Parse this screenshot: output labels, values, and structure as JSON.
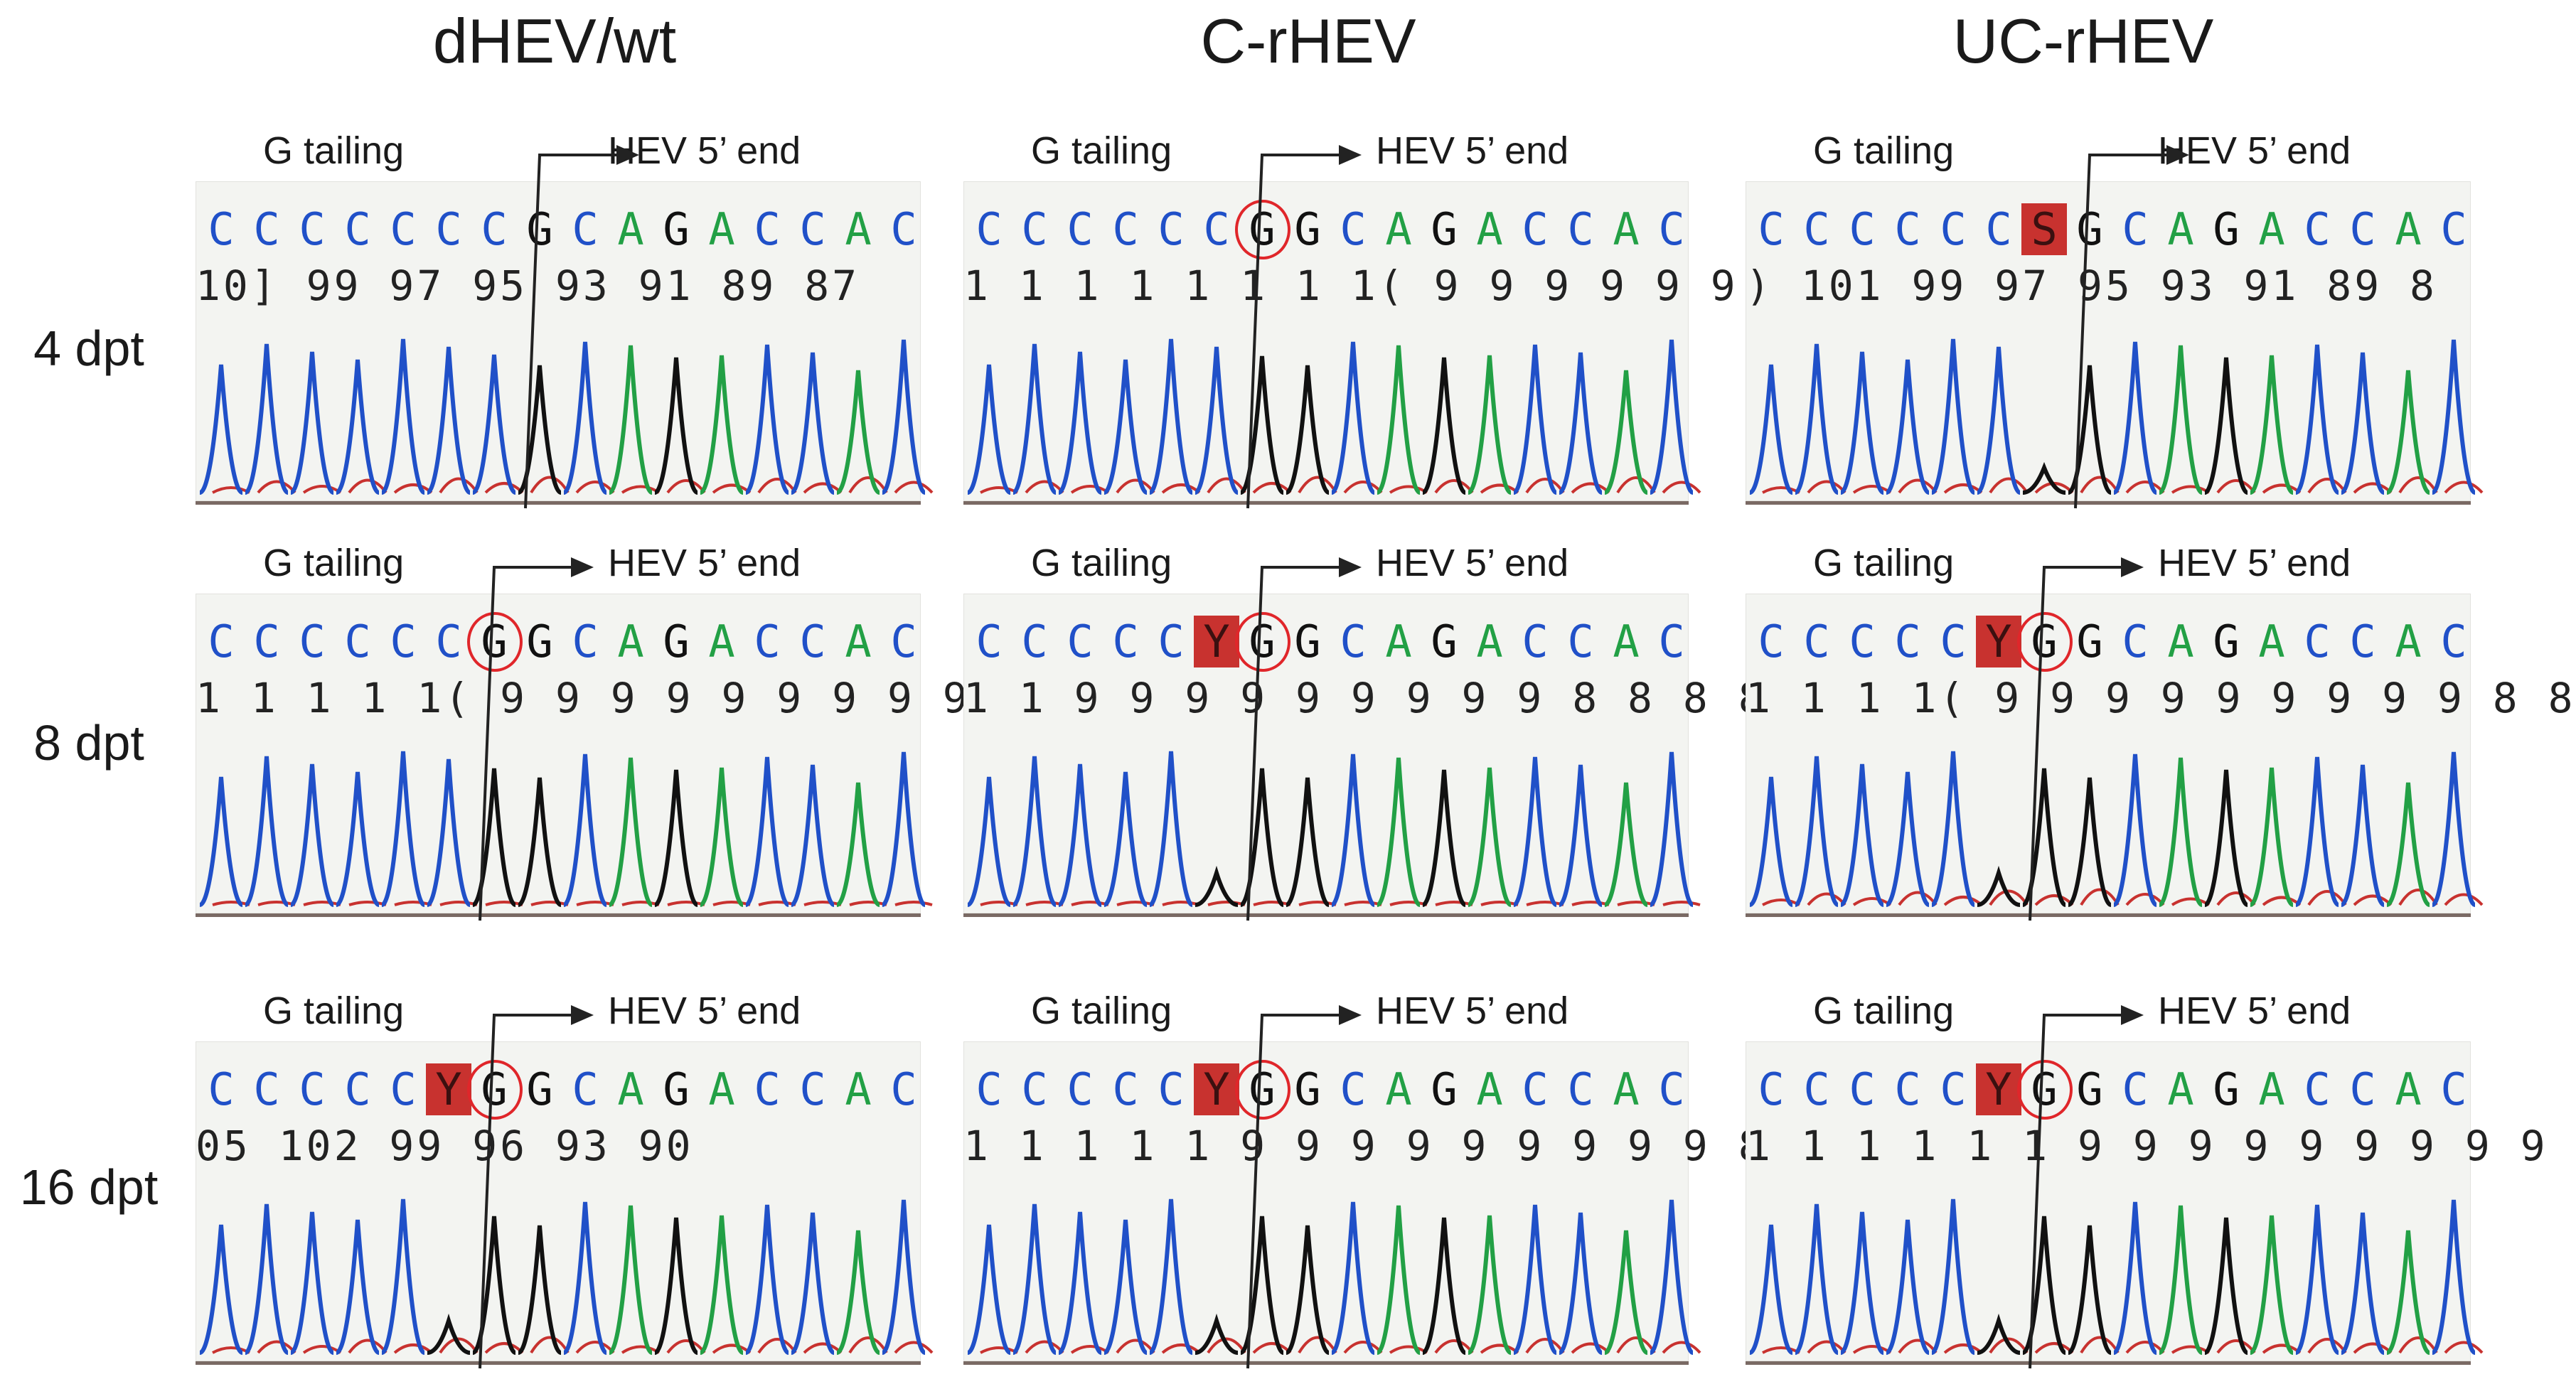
{
  "columns": [
    "dHEV/wt",
    "C-rHEV",
    "UC-rHEV"
  ],
  "rows": [
    "4 dpt",
    "8 dpt",
    "16 dpt"
  ],
  "labels": {
    "g_tailing": "G tailing",
    "hev_5_end": "HEV 5’ end"
  },
  "colors": {
    "A": "#22a045",
    "C": "#2050c8",
    "G": "#111111",
    "T": "#c8322f",
    "highlight": "#c8322f",
    "circle": "#e0262a",
    "baseline": "#7a6a64"
  },
  "panels": [
    {
      "id": "dhev-4",
      "bases": [
        "C",
        "C",
        "C",
        "C",
        "C",
        "C",
        "C",
        "G",
        "C",
        "A",
        "G",
        "A",
        "C",
        "C",
        "A",
        "C"
      ],
      "highlight": null,
      "circle": null,
      "numbers": "10] 99 97  95 93 91 89 87"
    },
    {
      "id": "crhev-4",
      "bases": [
        "C",
        "C",
        "C",
        "C",
        "C",
        "C",
        "G",
        "G",
        "C",
        "A",
        "G",
        "A",
        "C",
        "C",
        "A",
        "C"
      ],
      "highlight": null,
      "circle": 6,
      "numbers": "1 1 1 1 1 1 1 1( 9 9 9 9 9 9 9"
    },
    {
      "id": "ucrhev-4",
      "bases": [
        "C",
        "C",
        "C",
        "C",
        "C",
        "C",
        "S",
        "G",
        "C",
        "A",
        "G",
        "A",
        "C",
        "C",
        "A",
        "C"
      ],
      "highlight": 6,
      "circle": null,
      "numbers": ") 101 99  97 95  93  91  89  8"
    },
    {
      "id": "dhev-8",
      "bases": [
        "C",
        "C",
        "C",
        "C",
        "C",
        "C",
        "G",
        "G",
        "C",
        "A",
        "G",
        "A",
        "C",
        "C",
        "A",
        "C"
      ],
      "highlight": null,
      "circle": 6,
      "numbers": "1 1 1 1 1( 9 9 9 9 9 9 9 9 9 8"
    },
    {
      "id": "crhev-8",
      "bases": [
        "C",
        "C",
        "C",
        "C",
        "C",
        "Y",
        "G",
        "G",
        "C",
        "A",
        "G",
        "A",
        "C",
        "C",
        "A",
        "C"
      ],
      "highlight": 5,
      "circle": 6,
      "numbers": "1 1 9 9 9 9 9 9 9 9 9 8 8 8 8"
    },
    {
      "id": "ucrhev-8",
      "bases": [
        "C",
        "C",
        "C",
        "C",
        "C",
        "Y",
        "G",
        "G",
        "C",
        "A",
        "G",
        "A",
        "C",
        "C",
        "A",
        "C"
      ],
      "highlight": 5,
      "circle": 6,
      "numbers": "1 1 1 1( 9 9 9 9 9 9 9 9 9 8 8"
    },
    {
      "id": "dhev-16",
      "bases": [
        "C",
        "C",
        "C",
        "C",
        "C",
        "Y",
        "G",
        "G",
        "C",
        "A",
        "G",
        "A",
        "C",
        "C",
        "A",
        "C"
      ],
      "highlight": 5,
      "circle": 6,
      "numbers": "05  102  99   96   93   90"
    },
    {
      "id": "crhev-16",
      "bases": [
        "C",
        "C",
        "C",
        "C",
        "C",
        "Y",
        "G",
        "G",
        "C",
        "A",
        "G",
        "A",
        "C",
        "C",
        "A",
        "C"
      ],
      "highlight": 5,
      "circle": 6,
      "numbers": "1 1 1 1 1 9 9 9 9 9 9 9 9 9 8"
    },
    {
      "id": "ucrhev-16",
      "bases": [
        "C",
        "C",
        "C",
        "C",
        "C",
        "Y",
        "G",
        "G",
        "C",
        "A",
        "G",
        "A",
        "C",
        "C",
        "A",
        "C"
      ],
      "highlight": 5,
      "circle": 6,
      "numbers": "1 1 1 1 1 1 9 9 9 9 9 9 9 9 9"
    }
  ]
}
